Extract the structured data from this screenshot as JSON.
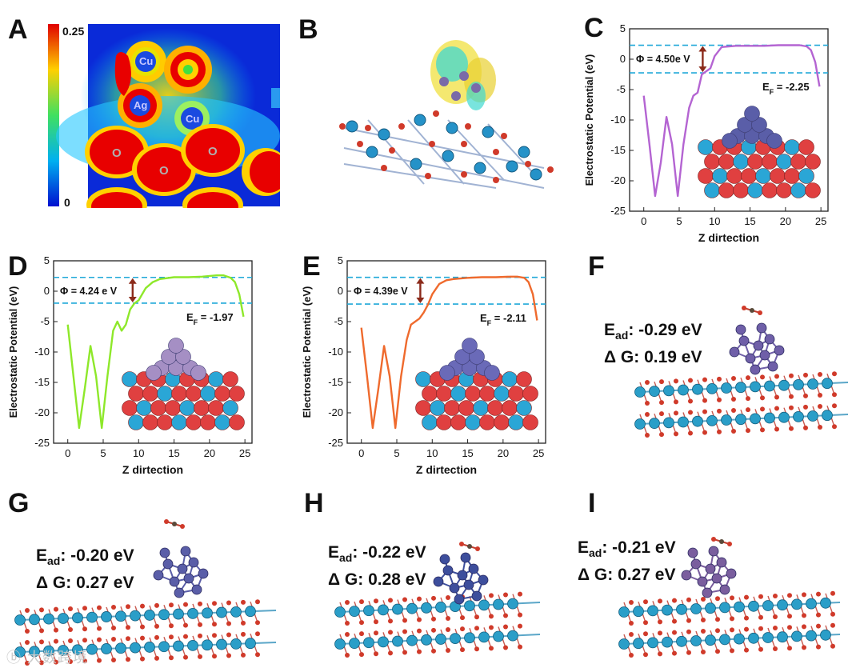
{
  "labels": {
    "A": "A",
    "B": "B",
    "C": "C",
    "D": "D",
    "E": "E",
    "F": "F",
    "G": "G",
    "H": "H",
    "I": "I"
  },
  "panelA": {
    "scale_max": "0.25",
    "scale_min": "0",
    "atoms": [
      "Cu",
      "Ag",
      "Cu",
      "O",
      "O",
      "O"
    ]
  },
  "plots": {
    "xlabel": "Z dirtection",
    "ylabel": "Electrostatic Potential (eV)",
    "xticks": [
      "0",
      "5",
      "10",
      "15",
      "20",
      "25"
    ],
    "yticks": [
      "5",
      "0",
      "-5",
      "-10",
      "-15",
      "-20",
      "-25"
    ]
  },
  "chart_data": [
    {
      "panel": "C",
      "type": "line",
      "title": "",
      "xlabel": "Z dirtection",
      "ylabel": "Electrostatic Potential (eV)",
      "xlim": [
        -2,
        26
      ],
      "ylim": [
        -25,
        5
      ],
      "color": "#b464d2",
      "x": [
        0,
        0.8,
        1.6,
        2.4,
        3.2,
        4.0,
        4.8,
        5.6,
        6.4,
        7.0,
        7.6,
        8.2,
        8.8,
        9.4,
        10.0,
        11,
        12,
        13,
        15,
        17,
        19,
        21,
        22,
        23,
        23.6,
        24.2,
        24.8
      ],
      "y": [
        -6,
        -14,
        -22.5,
        -17,
        -9.5,
        -14,
        -22.5,
        -14,
        -8,
        -6,
        -5.5,
        -2.5,
        -2,
        -1.5,
        0.5,
        2,
        2.1,
        2.2,
        2.2,
        2.2,
        2.3,
        2.3,
        2.3,
        2.1,
        1.5,
        -0.5,
        -4.5
      ],
      "phi_label": "Φ = 4.50e V",
      "ef_label": "E",
      "ef_sub": "F",
      "ef_value": " = -2.25",
      "vacuum_level": 2.3,
      "fermi_level": -2.25
    },
    {
      "panel": "D",
      "type": "line",
      "title": "",
      "xlabel": "Z dirtection",
      "ylabel": "Electrostatic Potential (eV)",
      "xlim": [
        -2,
        26
      ],
      "ylim": [
        -25,
        5
      ],
      "color": "#8ee82a",
      "x": [
        0,
        0.8,
        1.6,
        2.4,
        3.2,
        4.0,
        4.8,
        5.6,
        6.4,
        7.0,
        7.6,
        8.2,
        8.8,
        9.4,
        10.0,
        11,
        12,
        13,
        15,
        17,
        19,
        21,
        22,
        23,
        23.6,
        24.2,
        24.8
      ],
      "y": [
        -5.5,
        -14,
        -22.5,
        -16,
        -9,
        -14,
        -22.5,
        -14,
        -6.5,
        -5,
        -6.5,
        -5.5,
        -3,
        -2,
        -1.5,
        0.5,
        1.5,
        2,
        2.3,
        2.3,
        2.4,
        2.6,
        2.6,
        2.2,
        1.5,
        -0.5,
        -4.2
      ],
      "phi_label": "Φ = 4.24 e V",
      "ef_label": "E",
      "ef_sub": "F",
      "ef_value": " = -1.97",
      "vacuum_level": 2.27,
      "fermi_level": -1.97
    },
    {
      "panel": "E",
      "type": "line",
      "title": "",
      "xlabel": "Z dirtection",
      "ylabel": "Electrostatic Potential (eV)",
      "xlim": [
        -2,
        26
      ],
      "ylim": [
        -25,
        5
      ],
      "color": "#ef6a2d",
      "x": [
        0,
        0.8,
        1.6,
        2.4,
        3.2,
        4.0,
        4.8,
        5.6,
        6.4,
        7.0,
        7.6,
        8.2,
        8.8,
        9.4,
        10.0,
        11,
        12,
        13,
        15,
        17,
        19,
        21,
        22,
        23,
        23.6,
        24.2,
        24.8
      ],
      "y": [
        -6,
        -14,
        -22.5,
        -16,
        -9,
        -14,
        -22.5,
        -14,
        -8,
        -5.5,
        -5,
        -4.5,
        -3.5,
        -2.2,
        -0.5,
        1.2,
        1.8,
        2,
        2.2,
        2.3,
        2.3,
        2.4,
        2.4,
        2.2,
        1.5,
        -0.5,
        -4.8
      ],
      "phi_label": "Φ = 4.39e V",
      "ef_label": "E",
      "ef_sub": "F",
      "ef_value": " = -2.11",
      "vacuum_level": 2.28,
      "fermi_level": -2.11
    }
  ],
  "adsorption": [
    {
      "panel": "F",
      "ead_value": ": -0.29 eV",
      "dg_value": "Δ G: 0.19 eV",
      "cluster_color": "#6f5fa8"
    },
    {
      "panel": "G",
      "ead_value": ": -0.20 eV",
      "dg_value": "Δ G: 0.27 eV",
      "cluster_color": "#5a5ea8"
    },
    {
      "panel": "H",
      "ead_value": ": -0.22 eV",
      "dg_value": "Δ G: 0.28 eV",
      "cluster_color": "#3d4e9c"
    },
    {
      "panel": "I",
      "ead_value": ": -0.21 eV",
      "dg_value": "Δ G: 0.27 eV",
      "cluster_color": "#7a5e9e"
    }
  ],
  "ead_prefix": "E",
  "ead_sub": "ad",
  "colors": {
    "cyan_dash": "#1fa8d8",
    "arrow": "#8b2a1a",
    "surface_o": "#e04040",
    "surface_metal": "#2aa6d6"
  },
  "watermark": "大数跨境"
}
